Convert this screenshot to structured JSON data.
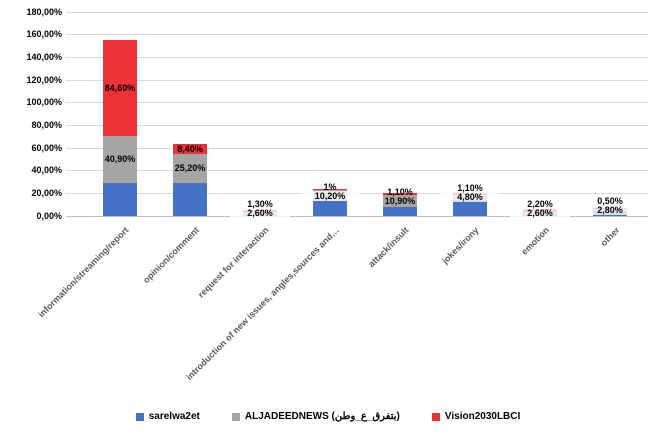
{
  "chart_data": {
    "type": "bar",
    "stacked": true,
    "title": "",
    "xlabel": "",
    "ylabel": "",
    "ylim": [
      0,
      180
    ],
    "ytick_step": 20,
    "ytick_labels": [
      "0,00%",
      "20,00%",
      "40,00%",
      "60,00%",
      "80,00%",
      "100,00%",
      "120,00%",
      "140,00%",
      "160,00%",
      "180,00%"
    ],
    "grid": true,
    "legend_position": "bottom",
    "categories": [
      "information/streaming/report",
      "opinion/comment",
      "request for interaction",
      "introduction of new issues, angles,sources and…",
      "attack/insult",
      "jokes/irony",
      "emotion",
      "other"
    ],
    "series": [
      {
        "name": "sarelwa2et",
        "color": "#4472C4",
        "values": [
          29.5,
          29.5,
          1.0,
          12.8,
          8.0,
          14.0,
          1.0,
          4.0
        ],
        "values_estimated": true,
        "labels": [
          "",
          "",
          "",
          "",
          "",
          "",
          "",
          ""
        ]
      },
      {
        "name": "ALJADEEDNEWS (بتفرق_ع_وطن)",
        "color": "#A5A5A5",
        "values": [
          40.9,
          25.2,
          2.6,
          10.2,
          10.9,
          4.8,
          2.6,
          2.8
        ],
        "labels": [
          "40,90%",
          "25,20%",
          "2,60%",
          "10,20%",
          "10,90%",
          "4,80%",
          "2,60%",
          "2,80%"
        ]
      },
      {
        "name": "Vision2030LBCI",
        "color": "#ED3237",
        "values": [
          84.6,
          8.4,
          1.3,
          1.0,
          1.1,
          1.1,
          2.2,
          0.5
        ],
        "labels": [
          "84,60%",
          "8,40%",
          "1,30%",
          "1%",
          "1,10%",
          "1,10%",
          "2,20%",
          "0,50%"
        ]
      }
    ]
  },
  "colors": {
    "gridline": "#D9D9D9",
    "axis_line": "#BFBFBF",
    "category_text": "#595959",
    "value_text": "#000000"
  }
}
